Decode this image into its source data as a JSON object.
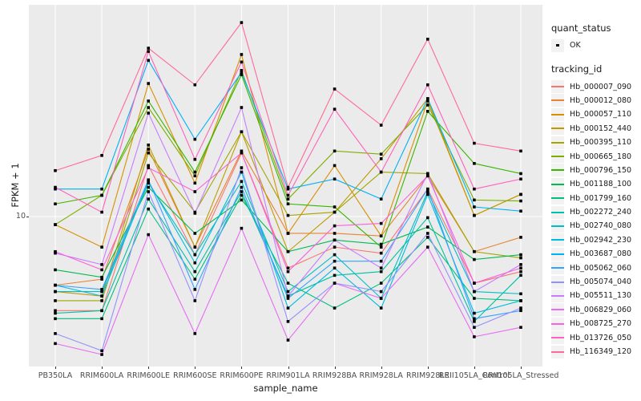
{
  "axes": {
    "y_title": "FPKM + 1",
    "x_title": "sample_name",
    "y_tick_labels": [
      "10"
    ]
  },
  "legend": {
    "quant_status_title": "quant_status",
    "quant_status_items": [
      {
        "label": "OK",
        "marker": "point-black"
      }
    ],
    "tracking_id_title": "tracking_id"
  },
  "colors": {
    "panel_bg": "#EBEBEB",
    "grid": "#FFFFFF",
    "point": "#000000",
    "key_bg": "#F2F2F2"
  },
  "chart_data": {
    "type": "line",
    "title": "",
    "xlabel": "sample_name",
    "ylabel": "FPKM + 1",
    "y_scale": "log10",
    "y_ticks": [
      10
    ],
    "ylim": [
      2.8,
      60
    ],
    "grid": "major-vertical-and-y10",
    "legend_position": "right",
    "point_marker": "small black square (quant_status OK)",
    "categories": [
      "PB350LA",
      "RRIM600LA",
      "RRIM600LE",
      "RRIM600SE",
      "RRIM600PE",
      "RRIM901LA",
      "RRIM928BA",
      "RRIM928LA",
      "RRIM928LE",
      "RRII105LA_Control",
      "RRII105LA_Stressed"
    ],
    "series": [
      {
        "name": "Hb_000007_090",
        "color": "#F8766D",
        "values": [
          4.3,
          4.3,
          15.8,
          7.1,
          17.7,
          6.3,
          7.6,
          7.2,
          12.8,
          5.5,
          6.1
        ]
      },
      {
        "name": "Hb_000012_080",
        "color": "#EA8331",
        "values": [
          5.4,
          5.7,
          18.3,
          7.6,
          18.0,
          8.6,
          8.6,
          8.4,
          14.4,
          7.3,
          8.3
        ]
      },
      {
        "name": "Hb_000057_110",
        "color": "#D89000",
        "values": [
          9.3,
          7.6,
          33.0,
          13.5,
          42.8,
          8.6,
          15.8,
          8.4,
          28.2,
          10.1,
          12.2
        ]
      },
      {
        "name": "Hb_000152_440",
        "color": "#C09B00",
        "values": [
          5.1,
          4.9,
          19.0,
          7.6,
          21.4,
          7.3,
          10.4,
          16.8,
          28.8,
          10.1,
          12.2
        ]
      },
      {
        "name": "Hb_000395_110",
        "color": "#A3A500",
        "values": [
          4.7,
          4.7,
          17.7,
          10.4,
          21.4,
          10.1,
          10.4,
          14.9,
          14.7,
          7.3,
          6.9
        ]
      },
      {
        "name": "Hb_000665_180",
        "color": "#7CAE00",
        "values": [
          9.3,
          12.1,
          26.6,
          14.4,
          37.1,
          11.7,
          18.0,
          17.5,
          27.2,
          11.6,
          11.5
        ]
      },
      {
        "name": "Hb_000796_150",
        "color": "#39B600",
        "values": [
          11.2,
          12.1,
          28.2,
          14.9,
          35.7,
          11.2,
          10.9,
          7.6,
          25.7,
          16.1,
          14.7
        ]
      },
      {
        "name": "Hb_001188_100",
        "color": "#00BB4E",
        "values": [
          6.2,
          5.8,
          13.0,
          8.6,
          11.6,
          7.3,
          8.1,
          7.8,
          9.1,
          6.8,
          7.1
        ]
      },
      {
        "name": "Hb_001799_160",
        "color": "#00BF7D",
        "values": [
          4.0,
          4.0,
          10.7,
          5.7,
          12.1,
          5.5,
          4.4,
          5.5,
          8.3,
          4.8,
          4.7
        ]
      },
      {
        "name": "Hb_002272_240",
        "color": "#00C1A3",
        "values": [
          4.2,
          4.3,
          11.7,
          6.1,
          12.5,
          4.9,
          5.9,
          6.1,
          9.9,
          3.9,
          5.9
        ]
      },
      {
        "name": "Hb_002740_080",
        "color": "#00BFC4",
        "values": [
          5.1,
          5.1,
          13.5,
          7.1,
          13.7,
          5.1,
          7.1,
          4.8,
          12.5,
          5.1,
          5.0
        ]
      },
      {
        "name": "Hb_002942_230",
        "color": "#00BAE0",
        "values": [
          5.4,
          4.9,
          13.7,
          6.6,
          14.9,
          4.4,
          6.3,
          4.4,
          12.2,
          4.2,
          4.7
        ]
      },
      {
        "name": "Hb_003687_080",
        "color": "#00B0F6",
        "values": [
          12.8,
          12.8,
          40.6,
          20.0,
          36.4,
          12.8,
          14.0,
          11.7,
          28.8,
          10.9,
          10.5
        ]
      },
      {
        "name": "Hb_005062_060",
        "color": "#35A2FF",
        "values": [
          5.4,
          5.2,
          13.9,
          5.2,
          13.0,
          4.8,
          6.7,
          6.7,
          12.8,
          4.0,
          4.3
        ]
      },
      {
        "name": "Hb_005074_040",
        "color": "#9590FF",
        "values": [
          3.5,
          3.0,
          12.5,
          4.7,
          15.5,
          3.9,
          5.5,
          5.1,
          8.6,
          3.7,
          4.4
        ]
      },
      {
        "name": "Hb_005511_130",
        "color": "#C77CFF",
        "values": [
          7.2,
          6.5,
          25.3,
          10.3,
          26.6,
          4.9,
          8.1,
          6.3,
          14.7,
          5.1,
          6.5
        ]
      },
      {
        "name": "Hb_006829_060",
        "color": "#E76BF3",
        "values": [
          3.2,
          2.9,
          8.5,
          3.5,
          9.0,
          3.3,
          5.5,
          4.8,
          7.6,
          3.4,
          3.7
        ]
      },
      {
        "name": "Hb_008725_270",
        "color": "#FA62DB",
        "values": [
          7.3,
          6.2,
          15.5,
          12.5,
          17.7,
          6.1,
          9.2,
          9.4,
          14.4,
          5.5,
          6.3
        ]
      },
      {
        "name": "Hb_013726_050",
        "color": "#FF62BC",
        "values": [
          13.0,
          10.4,
          44.0,
          16.7,
          40.0,
          12.1,
          26.2,
          14.9,
          32.6,
          12.8,
          14.0
        ]
      },
      {
        "name": "Hb_116349_120",
        "color": "#FF6A98",
        "values": [
          15.1,
          17.3,
          45.3,
          32.6,
          57.0,
          13.0,
          31.4,
          22.7,
          49.1,
          19.3,
          18.0
        ]
      }
    ]
  }
}
